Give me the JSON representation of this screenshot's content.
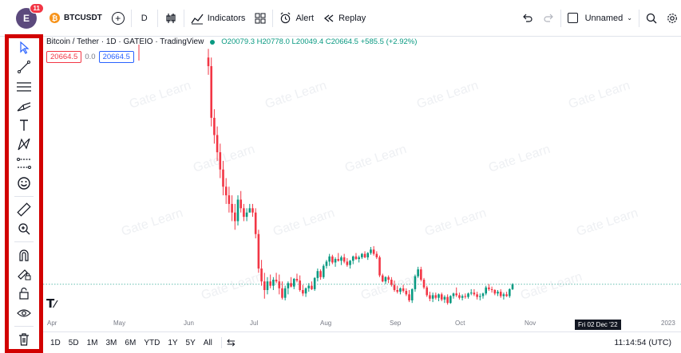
{
  "header": {
    "avatar_letter": "E",
    "notification_count": "11",
    "symbol": "BTCUSDT",
    "coin_letter": "₿",
    "interval": "D",
    "indicators_label": "Indicators",
    "alert_label": "Alert",
    "replay_label": "Replay",
    "layout_name": "Unnamed"
  },
  "legend": {
    "title": "Bitcoin / Tether · 1D · GATEIO · TradingView",
    "ohlc": "O20079.3 H20778.0 L20049.4 C20664.5 +585.5 (+2.92%)",
    "sell_price": "20664.5",
    "spread": "0.0",
    "buy_price": "20664.5"
  },
  "sidebar": {
    "tools": [
      "cursor-icon",
      "trend-line-icon",
      "horizontal-lines-icon",
      "pitchfork-icon",
      "text-icon",
      "pattern-icon",
      "forecast-icon",
      "emoji-icon",
      "ruler-icon",
      "zoom-in-icon",
      "magnet-icon",
      "lock-drawing-icon",
      "lock-icon",
      "eye-icon",
      "trash-icon"
    ]
  },
  "xaxis": {
    "labels": [
      "Apr",
      "May",
      "Jun",
      "Jul",
      "Aug",
      "Sep",
      "Oct",
      "Nov",
      "2023"
    ],
    "crosshair_date": "Fri 02 Dec '22"
  },
  "bottom": {
    "ranges": [
      "1D",
      "5D",
      "1M",
      "3M",
      "6M",
      "YTD",
      "1Y",
      "5Y",
      "All"
    ],
    "time": "11:14:54 (UTC)"
  },
  "watermark": "Gate Learn",
  "colors": {
    "up": "#089981",
    "down": "#f23645",
    "accent": "#2962ff",
    "highlight_border": "#d20000"
  },
  "chart_data": {
    "type": "candlestick",
    "series": [
      {
        "name": "",
        "values": [
          [
            47000,
            48000,
            45000,
            46000
          ],
          [
            46000,
            47000,
            39000,
            40000
          ],
          [
            40000,
            41000,
            37000,
            38000
          ],
          [
            38000,
            39000,
            35000,
            36000
          ],
          [
            36000,
            37000,
            33000,
            34000
          ],
          [
            34000,
            35000,
            31000,
            32000
          ],
          [
            32000,
            33000,
            30000,
            31000
          ],
          [
            31000,
            32000,
            29000,
            30000
          ],
          [
            30000,
            31000,
            28000,
            29000
          ],
          [
            29000,
            30000,
            27000,
            28000
          ],
          [
            28000,
            31000,
            27500,
            30500
          ],
          [
            30500,
            31500,
            29000,
            29500
          ],
          [
            29500,
            30000,
            28000,
            28500
          ],
          [
            28500,
            29500,
            28000,
            29000
          ],
          [
            29000,
            30000,
            29000,
            29500
          ],
          [
            29500,
            30000,
            28500,
            29000
          ],
          [
            29000,
            29500,
            26000,
            26500
          ],
          [
            26500,
            27000,
            22000,
            22500
          ],
          [
            22500,
            23500,
            20500,
            21000
          ],
          [
            21000,
            22000,
            19000,
            20000
          ],
          [
            20000,
            21500,
            19500,
            21000
          ],
          [
            21000,
            21800,
            20200,
            20500
          ],
          [
            20500,
            21500,
            20000,
            21200
          ],
          [
            21200,
            22000,
            20800,
            21000
          ],
          [
            21000,
            21800,
            19500,
            20200
          ],
          [
            20200,
            21000,
            18900,
            19100
          ],
          [
            19100,
            20500,
            18800,
            20200
          ],
          [
            20200,
            21000,
            19500,
            20800
          ],
          [
            20800,
            21500,
            20300,
            20400
          ],
          [
            20400,
            21400,
            20100,
            21300
          ],
          [
            21300,
            21900,
            20900,
            21100
          ],
          [
            21100,
            21700,
            19800,
            20000
          ],
          [
            20000,
            20600,
            19300,
            19600
          ],
          [
            19600,
            20300,
            19200,
            20200
          ],
          [
            20200,
            20800,
            19800,
            20500
          ],
          [
            20500,
            21000,
            20000,
            20100
          ],
          [
            20100,
            21500,
            19900,
            21400
          ],
          [
            21400,
            22500,
            21000,
            22200
          ],
          [
            22200,
            22400,
            21200,
            21500
          ],
          [
            21500,
            23000,
            21300,
            22800
          ],
          [
            22800,
            23500,
            22500,
            23300
          ],
          [
            23300,
            24200,
            22800,
            23900
          ],
          [
            23900,
            24100,
            23000,
            23200
          ],
          [
            23200,
            23800,
            22700,
            23600
          ],
          [
            23600,
            24300,
            23300,
            23400
          ],
          [
            23400,
            24000,
            22900,
            23800
          ],
          [
            23800,
            24200,
            23100,
            23300
          ],
          [
            23300,
            23700,
            22700,
            22900
          ],
          [
            22900,
            23500,
            22500,
            23400
          ],
          [
            23400,
            24000,
            23000,
            23900
          ],
          [
            23900,
            24300,
            23500,
            23600
          ],
          [
            23600,
            24000,
            23200,
            23800
          ],
          [
            23800,
            24300,
            23600,
            24200
          ],
          [
            24200,
            24500,
            23700,
            23800
          ],
          [
            23800,
            24400,
            23500,
            24300
          ],
          [
            24300,
            25000,
            24100,
            24700
          ],
          [
            24700,
            25100,
            24000,
            24200
          ],
          [
            24200,
            24500,
            23600,
            23800
          ],
          [
            23800,
            24000,
            21500,
            21700
          ],
          [
            21700,
            21900,
            20900,
            21000
          ],
          [
            21000,
            21600,
            20700,
            21500
          ],
          [
            21500,
            21700,
            20800,
            21200
          ],
          [
            21200,
            21500,
            20400,
            20600
          ],
          [
            20600,
            21100,
            19800,
            20000
          ],
          [
            20000,
            20500,
            19600,
            19800
          ],
          [
            19800,
            20300,
            19500,
            20200
          ],
          [
            20200,
            20600,
            19700,
            19900
          ],
          [
            19900,
            20200,
            19300,
            19500
          ],
          [
            19500,
            20000,
            18600,
            18800
          ],
          [
            18800,
            20200,
            18500,
            20100
          ],
          [
            20100,
            21800,
            19800,
            21600
          ],
          [
            21600,
            22700,
            21400,
            22400
          ],
          [
            22400,
            22700,
            21000,
            21200
          ],
          [
            21200,
            21400,
            20100,
            20300
          ],
          [
            20300,
            20500,
            19200,
            19400
          ],
          [
            19400,
            19800,
            18700,
            19000
          ],
          [
            19000,
            19700,
            18600,
            19400
          ],
          [
            19400,
            19700,
            18900,
            19100
          ],
          [
            19100,
            19600,
            18700,
            19500
          ],
          [
            19500,
            19700,
            18700,
            18900
          ],
          [
            18900,
            19400,
            18500,
            19200
          ],
          [
            19200,
            19500,
            18300,
            18500
          ],
          [
            18500,
            19400,
            18400,
            19300
          ],
          [
            19300,
            19700,
            19000,
            19600
          ],
          [
            19600,
            20300,
            19200,
            19400
          ],
          [
            19400,
            19700,
            18900,
            19100
          ],
          [
            19100,
            19500,
            18800,
            19300
          ],
          [
            19300,
            19600,
            19000,
            19200
          ],
          [
            19200,
            19700,
            19000,
            19600
          ],
          [
            19600,
            20100,
            19400,
            19700
          ],
          [
            19700,
            20100,
            19300,
            19500
          ],
          [
            19500,
            19800,
            18900,
            19200
          ],
          [
            19200,
            19600,
            18800,
            19300
          ],
          [
            19300,
            19700,
            19000,
            19600
          ],
          [
            19600,
            20500,
            19400,
            20300
          ],
          [
            20300,
            20700,
            19900,
            20100
          ],
          [
            20100,
            20400,
            19700,
            20000
          ],
          [
            20000,
            20100,
            19400,
            19600
          ],
          [
            19600,
            20000,
            19300,
            19800
          ],
          [
            19800,
            20100,
            19100,
            19300
          ],
          [
            19300,
            19700,
            18900,
            19500
          ],
          [
            19500,
            19800,
            19200,
            19300
          ],
          [
            19300,
            20200,
            19100,
            20100
          ],
          [
            20100,
            20800,
            20000,
            20664.5
          ]
        ]
      }
    ],
    "last_price": 20664.5
  }
}
